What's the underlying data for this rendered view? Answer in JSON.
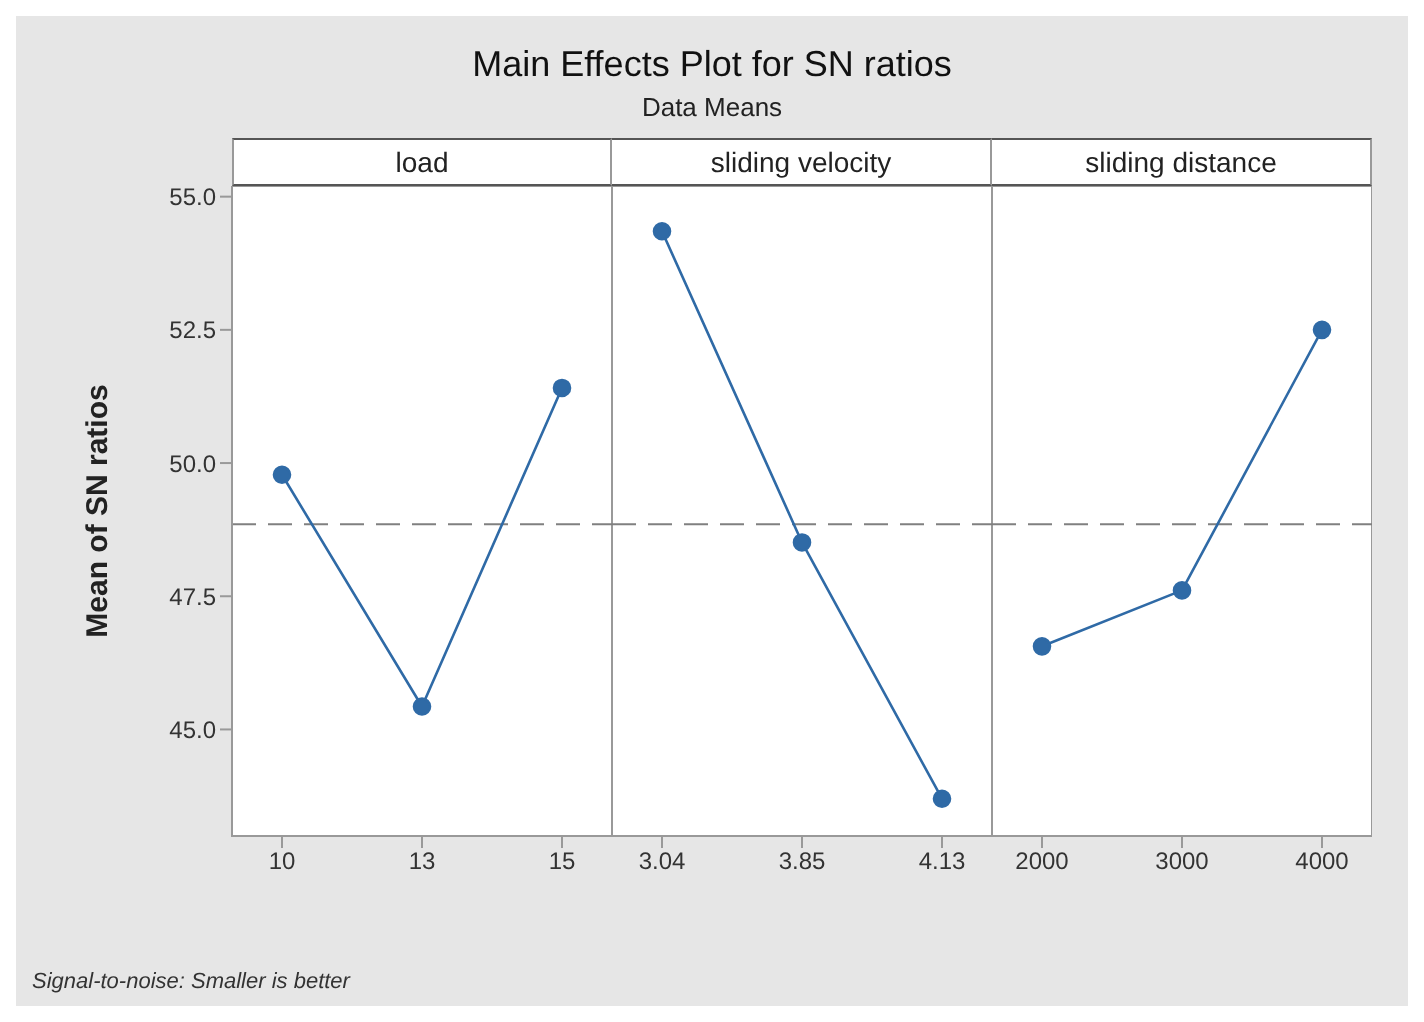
{
  "chart_data": [
    {
      "type": "line",
      "title": "load",
      "categories": [
        "10",
        "13",
        "15"
      ],
      "series": [
        {
          "color": "#2f6aa6",
          "values": [
            49.78,
            45.43,
            51.41
          ]
        }
      ],
      "ylim": [
        43.0,
        55.2
      ],
      "yticks": [
        {
          "value": 45,
          "label": "45.0"
        },
        {
          "value": 47.5,
          "label": "47.5"
        },
        {
          "value": 50,
          "label": "50.0"
        },
        {
          "value": 52.5,
          "label": "52.5"
        },
        {
          "value": 55,
          "label": "55.0"
        }
      ],
      "ylabel": "Mean of SN ratios",
      "marker": "circle",
      "line_style": "solid",
      "ref_lines": [
        {
          "axis": "y",
          "value": 48.85,
          "color": "#808080",
          "line_style": "dashed"
        }
      ],
      "annotations": [
        "Main Effects Plot for SN ratios",
        "Data Means",
        "Signal-to-noise: Smaller is better"
      ]
    },
    {
      "type": "line",
      "title": "sliding velocity",
      "categories": [
        "3.04",
        "3.85",
        "4.13"
      ],
      "series": [
        {
          "color": "#2f6aa6",
          "values": [
            54.35,
            48.51,
            43.7
          ]
        }
      ],
      "ylim": [
        43.0,
        55.2
      ],
      "tick_labels": "x",
      "marker": "circle",
      "line_style": "solid",
      "ref_lines": [
        {
          "axis": "y",
          "value": 48.85,
          "color": "#808080",
          "line_style": "dashed"
        }
      ]
    },
    {
      "type": "line",
      "title": "sliding distance",
      "categories": [
        "2000",
        "3000",
        "4000"
      ],
      "series": [
        {
          "color": "#2f6aa6",
          "values": [
            46.56,
            47.61,
            52.5
          ]
        }
      ],
      "ylim": [
        43.0,
        55.2
      ],
      "tick_labels": "x",
      "marker": "circle",
      "line_style": "solid",
      "ref_lines": [
        {
          "axis": "y",
          "value": 48.85,
          "color": "#808080",
          "line_style": "dashed"
        }
      ]
    }
  ]
}
